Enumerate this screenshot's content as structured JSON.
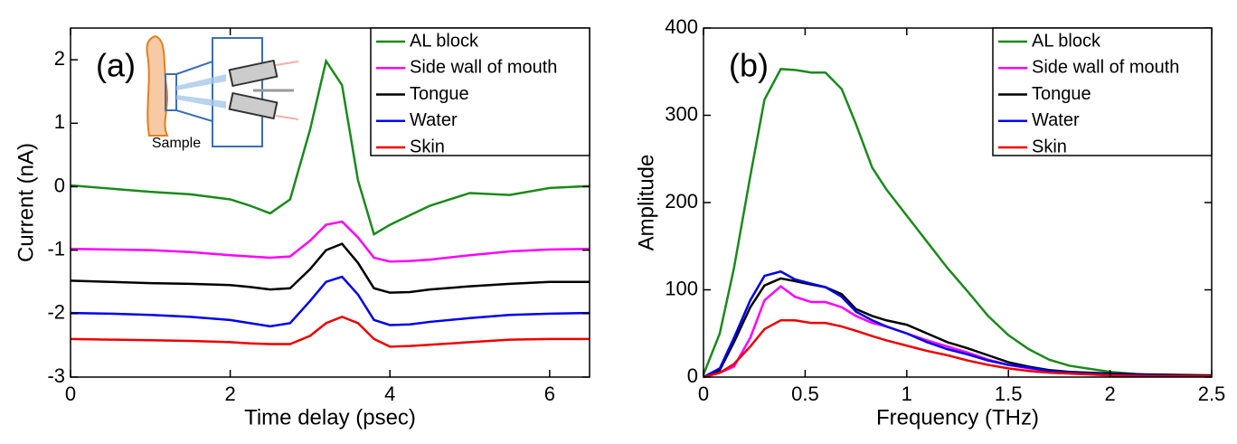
{
  "chart_data": [
    {
      "type": "line",
      "panel_label": "(a)",
      "xlabel": "Time delay (psec)",
      "ylabel": "Current (nA)",
      "annotation": "Sample",
      "x": [
        0,
        0.5,
        1,
        1.5,
        2,
        2.25,
        2.5,
        2.75,
        3,
        3.2,
        3.4,
        3.6,
        3.8,
        4,
        4.25,
        4.5,
        5,
        5.5,
        6,
        6.5
      ],
      "series": [
        {
          "name": "AL block",
          "color": "#1a8a1a",
          "values": [
            0.02,
            -0.03,
            -0.08,
            -0.12,
            -0.2,
            -0.3,
            -0.42,
            -0.2,
            0.9,
            1.98,
            1.6,
            0.1,
            -0.75,
            -0.6,
            -0.45,
            -0.3,
            -0.1,
            -0.13,
            -0.02,
            0.01
          ]
        },
        {
          "name": "Side wall of mouth",
          "color": "#ff00ff",
          "values": [
            -0.98,
            -0.99,
            -1.0,
            -1.03,
            -1.08,
            -1.1,
            -1.12,
            -1.1,
            -0.85,
            -0.6,
            -0.55,
            -0.8,
            -1.12,
            -1.18,
            -1.17,
            -1.15,
            -1.08,
            -1.02,
            -0.99,
            -0.98
          ]
        },
        {
          "name": "Tongue",
          "color": "#000000",
          "values": [
            -1.48,
            -1.5,
            -1.52,
            -1.53,
            -1.55,
            -1.58,
            -1.62,
            -1.6,
            -1.3,
            -1.0,
            -0.9,
            -1.2,
            -1.6,
            -1.67,
            -1.66,
            -1.62,
            -1.57,
            -1.53,
            -1.5,
            -1.5
          ]
        },
        {
          "name": "Water",
          "color": "#0000ee",
          "values": [
            -1.99,
            -2.0,
            -2.02,
            -2.05,
            -2.1,
            -2.15,
            -2.2,
            -2.15,
            -1.8,
            -1.5,
            -1.42,
            -1.7,
            -2.1,
            -2.18,
            -2.17,
            -2.13,
            -2.07,
            -2.02,
            -2.0,
            -1.99
          ]
        },
        {
          "name": "Skin",
          "color": "#ee0000",
          "values": [
            -2.4,
            -2.41,
            -2.42,
            -2.43,
            -2.45,
            -2.47,
            -2.48,
            -2.48,
            -2.35,
            -2.15,
            -2.05,
            -2.15,
            -2.4,
            -2.52,
            -2.51,
            -2.49,
            -2.45,
            -2.41,
            -2.4,
            -2.4
          ]
        }
      ],
      "xlim": [
        0,
        6.5
      ],
      "ylim": [
        -3,
        2.5
      ],
      "xticks": [
        0,
        2,
        4,
        6
      ],
      "yticks": [
        -3,
        -2,
        -1,
        0,
        1,
        2
      ],
      "legend": "upper right"
    },
    {
      "type": "line",
      "panel_label": "(b)",
      "xlabel": "Frequency (THz)",
      "ylabel": "Amplitude",
      "x": [
        0,
        0.08,
        0.15,
        0.23,
        0.3,
        0.38,
        0.45,
        0.53,
        0.6,
        0.68,
        0.75,
        0.83,
        0.9,
        1.0,
        1.1,
        1.2,
        1.3,
        1.4,
        1.5,
        1.6,
        1.7,
        1.8,
        2.0,
        2.2,
        2.5
      ],
      "series": [
        {
          "name": "AL block",
          "color": "#1a8a1a",
          "values": [
            3,
            50,
            125,
            230,
            318,
            353,
            352,
            349,
            349,
            330,
            290,
            240,
            215,
            185,
            155,
            125,
            98,
            70,
            48,
            32,
            20,
            13,
            6,
            2,
            1
          ]
        },
        {
          "name": "Side wall of mouth",
          "color": "#ff00ff",
          "values": [
            0,
            5,
            12,
            45,
            88,
            104,
            92,
            86,
            86,
            80,
            70,
            62,
            58,
            50,
            42,
            35,
            28,
            20,
            14,
            10,
            7,
            5,
            3,
            2,
            1
          ]
        },
        {
          "name": "Tongue",
          "color": "#000000",
          "values": [
            0,
            8,
            40,
            80,
            105,
            113,
            110,
            106,
            103,
            95,
            78,
            70,
            65,
            60,
            50,
            40,
            33,
            25,
            17,
            12,
            8,
            6,
            4,
            3,
            2
          ]
        },
        {
          "name": "Water",
          "color": "#0000ee",
          "values": [
            0,
            10,
            45,
            88,
            116,
            121,
            112,
            107,
            103,
            92,
            75,
            65,
            58,
            50,
            40,
            32,
            26,
            19,
            14,
            11,
            7,
            5,
            3,
            2,
            1
          ]
        },
        {
          "name": "Skin",
          "color": "#ee0000",
          "values": [
            0,
            5,
            15,
            35,
            55,
            65,
            65,
            62,
            62,
            58,
            53,
            47,
            42,
            36,
            30,
            25,
            19,
            14,
            10,
            7,
            5,
            4,
            2,
            1,
            1
          ]
        }
      ],
      "xlim": [
        0,
        2.5
      ],
      "ylim": [
        0,
        400
      ],
      "xticks": [
        0,
        0.5,
        1,
        1.5,
        2,
        2.5
      ],
      "yticks": [
        0,
        100,
        200,
        300,
        400
      ],
      "legend": "upper right"
    }
  ]
}
